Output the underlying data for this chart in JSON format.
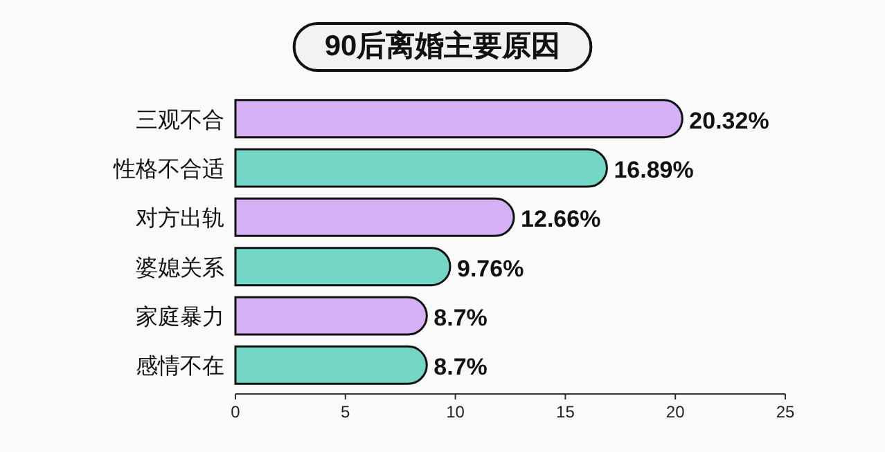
{
  "chart_data": {
    "type": "bar",
    "orientation": "horizontal",
    "title": "90后离婚主要原因",
    "categories": [
      "三观不合",
      "性格不合适",
      "对方出轨",
      "婆媳关系",
      "家庭暴力",
      "感情不在"
    ],
    "values": [
      20.32,
      16.89,
      12.66,
      9.76,
      8.7,
      8.7
    ],
    "colors": [
      "#d6b0f4",
      "#74d6c7",
      "#d6b0f4",
      "#74d6c7",
      "#d6b0f4",
      "#74d6c7"
    ],
    "value_labels": [
      "20.32%",
      "16.89%",
      "12.66%",
      "9.76%",
      "8.7%",
      "8.7%"
    ],
    "xlim": [
      0,
      25
    ],
    "xticks": [
      0,
      5,
      10,
      15,
      20,
      25
    ]
  }
}
